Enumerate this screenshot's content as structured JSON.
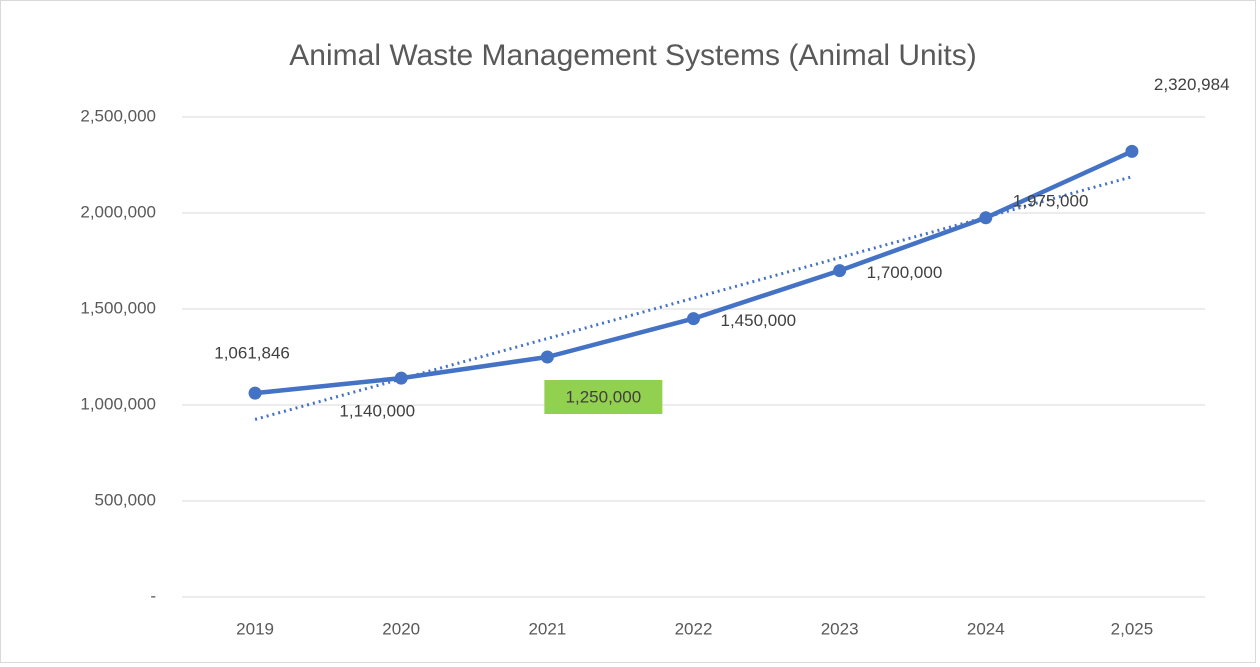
{
  "chart_data": {
    "type": "line",
    "title": "Animal Waste Management Systems (Animal Units)",
    "categories": [
      "2019",
      "2020",
      "2021",
      "2022",
      "2023",
      "2024",
      "2,025"
    ],
    "series": [
      {
        "name": "Animal Units",
        "color": "#4472c4",
        "values": [
          1061846,
          1140000,
          1250000,
          1450000,
          1700000,
          1975000,
          2320984
        ],
        "value_labels": [
          "1,061,846",
          "1,140,000",
          "1,250,000",
          "1,450,000",
          "1,700,000",
          "1,975,000",
          "2,320,984"
        ],
        "value_label_backgrounds": [
          null,
          null,
          "#92d050",
          null,
          null,
          null,
          null
        ]
      }
    ],
    "trendline": "linear",
    "ylim": [
      0,
      2500000
    ],
    "yticks": [
      {
        "value": 0,
        "label": "-"
      },
      {
        "value": 500000,
        "label": "500,000"
      },
      {
        "value": 1000000,
        "label": "1,000,000"
      },
      {
        "value": 1500000,
        "label": "1,500,000"
      },
      {
        "value": 2000000,
        "label": "2,000,000"
      },
      {
        "value": 2500000,
        "label": "2,500,000"
      }
    ],
    "grid": true
  }
}
